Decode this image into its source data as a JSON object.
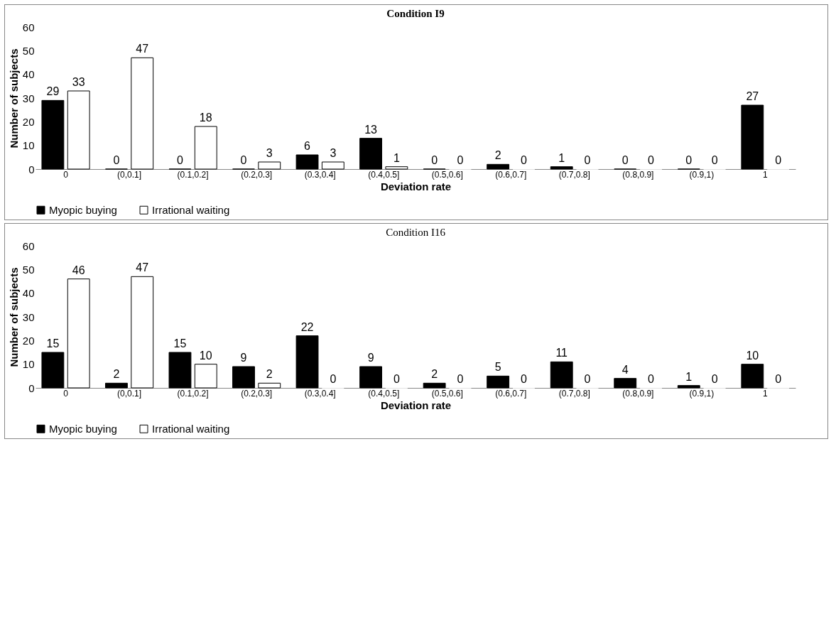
{
  "chart_data": [
    {
      "type": "bar",
      "title": "Condition I9",
      "xlabel": "Deviation rate",
      "ylabel": "Number of subjects",
      "categories": [
        "0",
        "(0,0.1]",
        "(0.1,0.2]",
        "(0.2,0.3]",
        "(0.3,0.4]",
        "(0.4,0.5]",
        "(0.5,0.6]",
        "(0.6,0.7]",
        "(0.7,0.8]",
        "(0.8,0.9]",
        "(0.9,1)",
        "1"
      ],
      "series": [
        {
          "name": "Myopic buying",
          "color": "#000000",
          "values": [
            29,
            0,
            0,
            0,
            6,
            13,
            0,
            2,
            1,
            0,
            0,
            27
          ]
        },
        {
          "name": "Irrational waiting",
          "color": "#ffffff",
          "values": [
            33,
            47,
            18,
            3,
            3,
            1,
            0,
            0,
            0,
            0,
            0,
            0
          ]
        }
      ],
      "ylim": [
        0,
        60
      ],
      "yticks": [
        0,
        10,
        20,
        30,
        40,
        50,
        60
      ],
      "data_labels": true,
      "legend": "bottom"
    },
    {
      "type": "bar",
      "title": "Condition I16",
      "xlabel": "Deviation rate",
      "ylabel": "Number of subjects",
      "categories": [
        "0",
        "(0,0.1]",
        "(0.1,0.2]",
        "(0.2,0.3]",
        "(0.3,0.4]",
        "(0.4,0.5]",
        "(0.5,0.6]",
        "(0.6,0.7]",
        "(0.7,0.8]",
        "(0.8,0.9]",
        "(0.9,1)",
        "1"
      ],
      "series": [
        {
          "name": "Myopic buying",
          "color": "#000000",
          "values": [
            15,
            2,
            15,
            9,
            22,
            9,
            2,
            5,
            11,
            4,
            1,
            10
          ]
        },
        {
          "name": "Irrational waiting",
          "color": "#ffffff",
          "values": [
            46,
            47,
            10,
            2,
            0,
            0,
            0,
            0,
            0,
            0,
            0,
            0
          ]
        }
      ],
      "ylim": [
        0,
        60
      ],
      "yticks": [
        0,
        10,
        20,
        30,
        40,
        50,
        60
      ],
      "data_labels": true,
      "legend": "bottom"
    }
  ]
}
